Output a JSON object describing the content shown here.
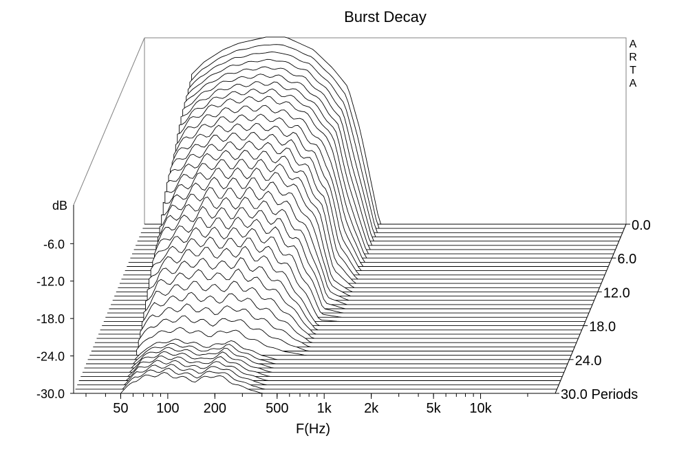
{
  "chart_data": {
    "type": "line",
    "subtype": "waterfall-3d",
    "title": "Burst Decay",
    "watermark": "ARTA",
    "xlabel": "F(Hz)",
    "ylabel": "dB",
    "zlabel": "Periods",
    "x_scale": "log",
    "x_ticks": [
      {
        "value": 50,
        "label": "50"
      },
      {
        "value": 100,
        "label": "100"
      },
      {
        "value": 200,
        "label": "200"
      },
      {
        "value": 500,
        "label": "500"
      },
      {
        "value": 1000,
        "label": "1k"
      },
      {
        "value": 2000,
        "label": "2k"
      },
      {
        "value": 5000,
        "label": "5k"
      },
      {
        "value": 10000,
        "label": "10k"
      }
    ],
    "y_ticks": [
      "-6.0",
      "-12.0",
      "-18.0",
      "-24.0",
      "-30.0"
    ],
    "y_range": [
      -30,
      0
    ],
    "z_ticks": [
      "0.0",
      "6.0",
      "12.0",
      "18.0",
      "24.0",
      "30.0"
    ],
    "z_range": [
      0,
      30
    ],
    "z_tick_suffix": " Periods",
    "series": [
      {
        "periods": 0,
        "x": [
          50,
          60,
          80,
          100,
          150,
          200,
          300,
          400,
          500,
          600,
          800
        ],
        "y": [
          -6,
          -4,
          -2,
          -1,
          0,
          0,
          -2,
          -5,
          -8,
          -15,
          -30
        ]
      },
      {
        "periods": 6,
        "x": [
          50,
          60,
          80,
          100,
          150,
          200,
          300,
          400,
          500,
          600,
          800
        ],
        "y": [
          -10,
          -8,
          -6,
          -5,
          -4.5,
          -4.5,
          -6,
          -9,
          -13,
          -22,
          -30
        ]
      },
      {
        "periods": 12,
        "x": [
          50,
          60,
          80,
          100,
          150,
          200,
          300,
          400,
          500,
          600,
          800
        ],
        "y": [
          -16,
          -14,
          -12,
          -11,
          -11,
          -11,
          -12,
          -15,
          -20,
          -28,
          -30
        ]
      },
      {
        "periods": 18,
        "x": [
          50,
          60,
          80,
          100,
          150,
          200,
          300,
          400,
          500,
          600,
          800
        ],
        "y": [
          -23,
          -20,
          -19,
          -18,
          -18.5,
          -18,
          -20,
          -23,
          -27,
          -30,
          -30
        ]
      },
      {
        "periods": 24,
        "x": [
          50,
          60,
          80,
          100,
          150,
          200,
          300,
          400,
          500,
          600,
          800
        ],
        "y": [
          -30,
          -28,
          -27,
          -27,
          -28,
          -27,
          -29,
          -30,
          -30,
          -30,
          -30
        ]
      }
    ]
  }
}
